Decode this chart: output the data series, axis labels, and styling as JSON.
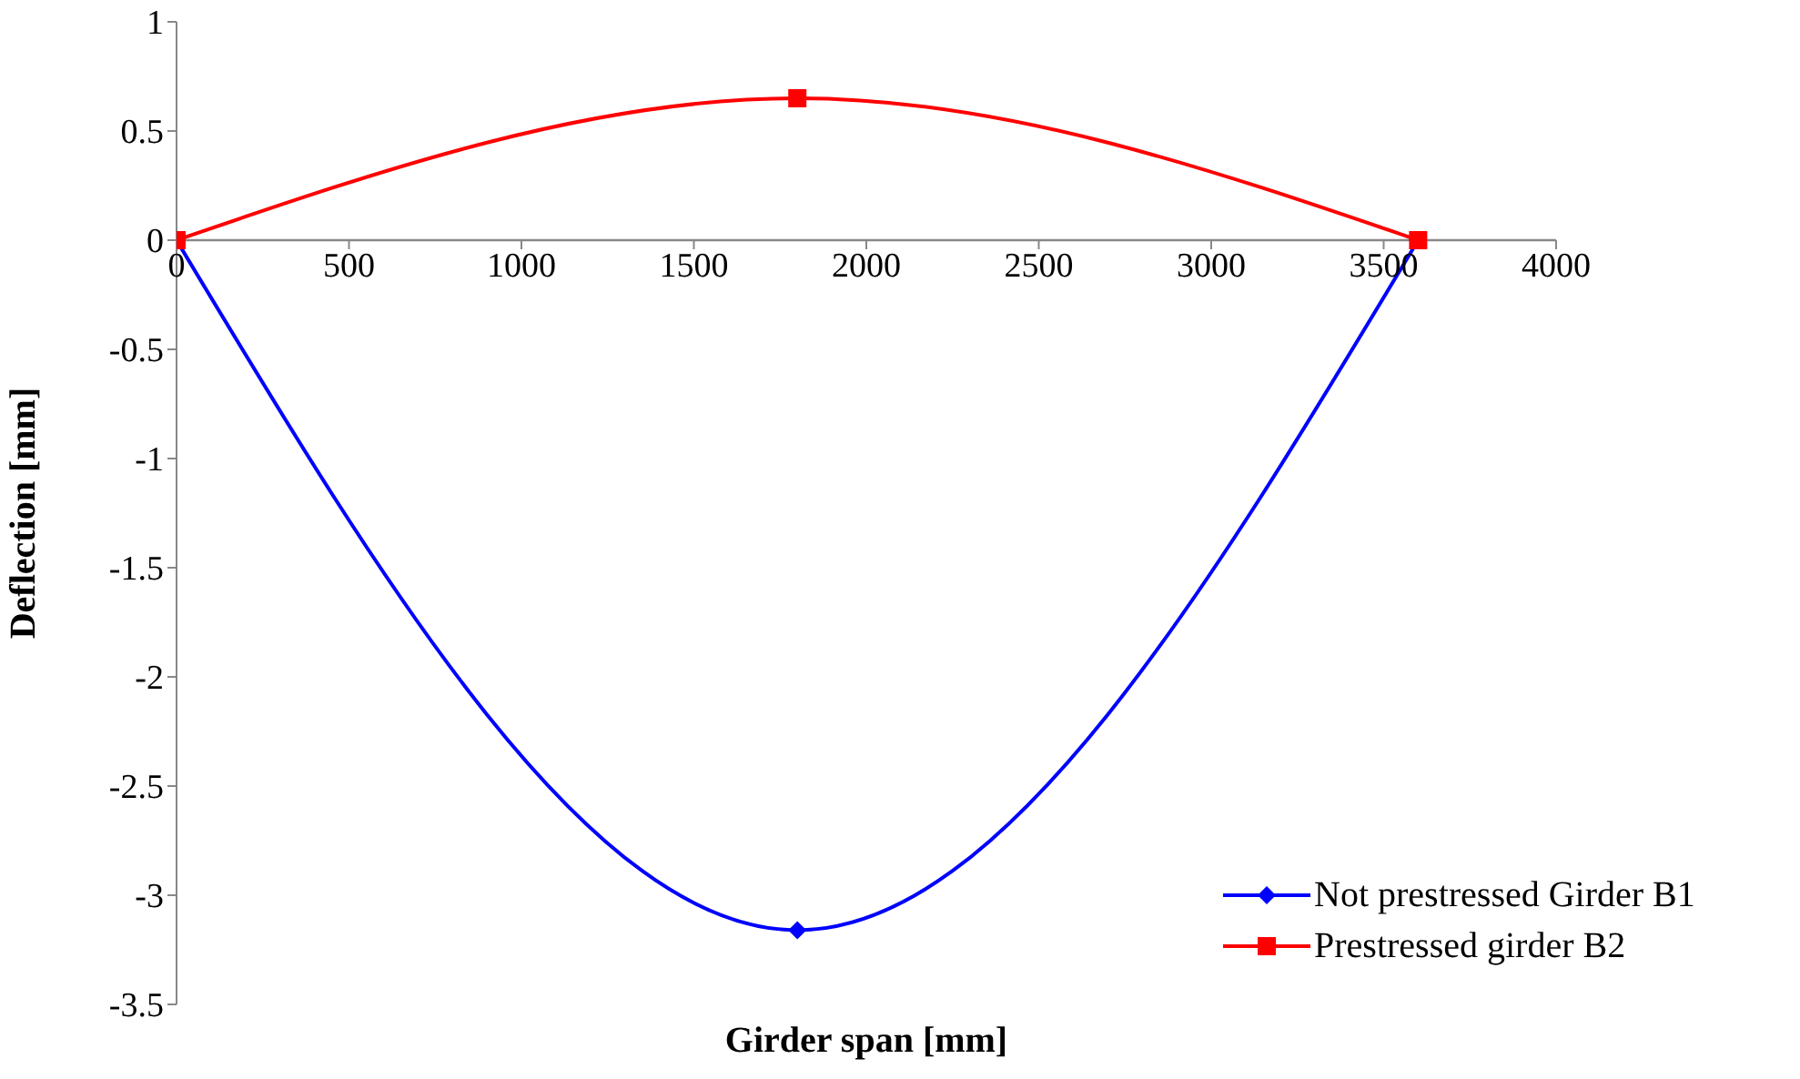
{
  "chart_data": {
    "type": "line",
    "xlabel": "Girder span [mm]",
    "ylabel": "Deflection [mm]",
    "xlim": [
      0,
      4000
    ],
    "xticks": [
      0,
      500,
      1000,
      1500,
      2000,
      2500,
      3000,
      3500,
      4000
    ],
    "ylim": [
      -3.5,
      1
    ],
    "yticks": [
      -3.5,
      -3,
      -2.5,
      -2,
      -1.5,
      -1,
      -0.5,
      0,
      0.5,
      1
    ],
    "grid": false,
    "legend": "bottom right",
    "line_style": "solid",
    "series": [
      {
        "name": "Not prestressed Girder B1",
        "color": "#0000ff",
        "marker": "diamond",
        "x": [
          0,
          1800,
          3600
        ],
        "values": [
          0,
          -3.16,
          0
        ]
      },
      {
        "name": "Prestressed girder B2",
        "color": "#ff0000",
        "marker": "square",
        "x": [
          0,
          1800,
          3600
        ],
        "values": [
          0,
          0.65,
          0
        ]
      }
    ]
  }
}
